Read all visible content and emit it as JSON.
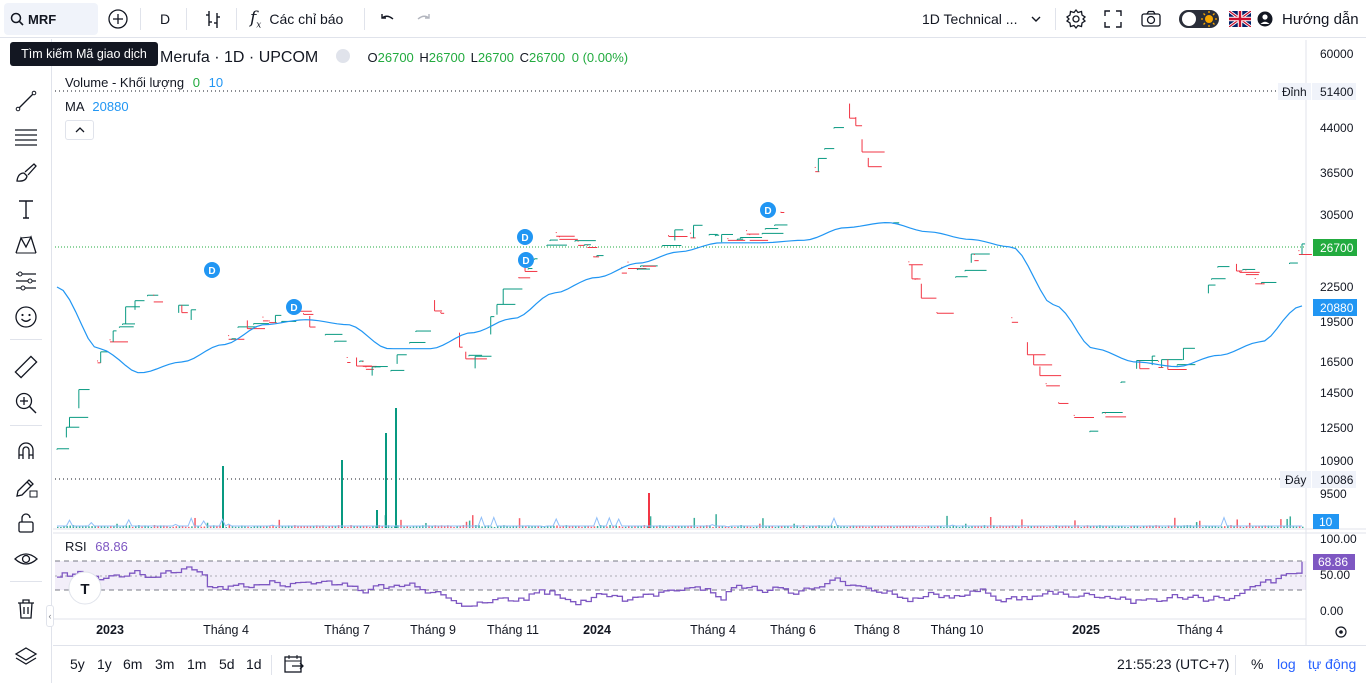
{
  "toolbar": {
    "symbol": "MRF",
    "interval": "D",
    "indicators_label": "Các chỉ báo",
    "layout_name": "1D Technical ...",
    "help_label": "Hướng dẫn"
  },
  "tooltip": {
    "text": "Tìm kiếm Mã giao dịch"
  },
  "legend": {
    "title": "Merufa · 1D · UPCOM",
    "o_label": "O",
    "o_value": "26700",
    "h_label": "H",
    "h_value": "26700",
    "l_label": "L",
    "l_value": "26700",
    "c_label": "C",
    "c_value": "26700",
    "change": "0 (0.00%)",
    "volume_label": "Volume - Khối lượng",
    "volume_value_1": "0",
    "volume_value_2": "10",
    "ma_label": "MA",
    "ma_value": "20880",
    "rsi_label": "RSI",
    "rsi_value": "68.86"
  },
  "price_axis": {
    "labels": [
      "60000",
      "51400",
      "44000",
      "36500",
      "30500",
      "26700",
      "22500",
      "20880",
      "19500",
      "16500",
      "14500",
      "12500",
      "10900",
      "10086",
      "9500"
    ],
    "high_tag": "Đỉnh",
    "high_value": "51400",
    "low_tag": "Đáy",
    "low_value": "10086",
    "last_price": "26700",
    "ma_price": "20880",
    "volume_tag": "10"
  },
  "rsi_axis": {
    "labels": [
      "100.00",
      "50.00",
      "0.00"
    ],
    "current": "68.86"
  },
  "time_axis": [
    "2023",
    "Tháng 4",
    "Tháng 7",
    "Tháng 9",
    "Tháng 11",
    "2024",
    "Tháng 4",
    "Tháng 6",
    "Tháng 8",
    "Tháng 10",
    "2025",
    "Tháng 4"
  ],
  "bottom": {
    "ranges": [
      "5y",
      "1y",
      "6m",
      "3m",
      "1m",
      "5d",
      "1d"
    ],
    "clock": "21:55:23 (UTC+7)",
    "percent": "%",
    "log": "log",
    "auto": "tự động"
  },
  "dividend_marker": "D",
  "colors": {
    "up": "#089981",
    "down": "#f23645",
    "ma": "#2196f3",
    "rsi": "#7e57c2",
    "last_price": "#22ab3f"
  },
  "chart_data": {
    "type": "bar",
    "title": "Merufa · 1D · UPCOM",
    "period": "2022-12 to 2025-06",
    "price_scale_ticks": [
      9500,
      10900,
      12500,
      14500,
      16500,
      19500,
      22500,
      30500,
      36500,
      44000,
      60000
    ],
    "price_high": 51400,
    "price_low": 10086,
    "last_close": 26700,
    "ma_last": 20880,
    "rsi_last": 68.86,
    "rsi_levels": [
      30,
      50,
      70
    ],
    "rsi_scale": [
      0,
      100
    ],
    "ohlc_last": {
      "open": 26700,
      "high": 26700,
      "low": 26700,
      "close": 26700
    },
    "price_series": {
      "x": [
        "2022-12",
        "2023-01",
        "2023-02",
        "2023-03",
        "2023-04",
        "2023-05",
        "2023-06",
        "2023-07",
        "2023-08",
        "2023-09",
        "2023-10",
        "2023-11",
        "2023-12",
        "2024-01",
        "2024-02",
        "2024-03",
        "2024-04",
        "2024-05",
        "2024-06",
        "2024-07",
        "2024-08",
        "2024-09",
        "2024-10",
        "2024-11",
        "2024-12",
        "2025-01",
        "2025-02",
        "2025-03",
        "2025-04",
        "2025-05",
        "2025-06"
      ],
      "close": [
        11500,
        17000,
        22000,
        20500,
        18500,
        19700,
        20000,
        16500,
        15500,
        21500,
        16500,
        23500,
        28000,
        25500,
        24000,
        29000,
        27500,
        28500,
        34000,
        48000,
        30500,
        19500,
        25500,
        19700,
        14000,
        12300,
        16500,
        16500,
        25500,
        22500,
        26700
      ]
    },
    "ma_series": [
      22500,
      17500,
      15800,
      16500,
      17800,
      19300,
      19700,
      19300,
      17500,
      17500,
      18700,
      19800,
      22000,
      23500,
      25000,
      26200,
      27200,
      27200,
      27500,
      29000,
      29600,
      28500,
      27600,
      26700,
      21000,
      17500,
      16500,
      16200,
      17000,
      18000,
      20880
    ]
  }
}
